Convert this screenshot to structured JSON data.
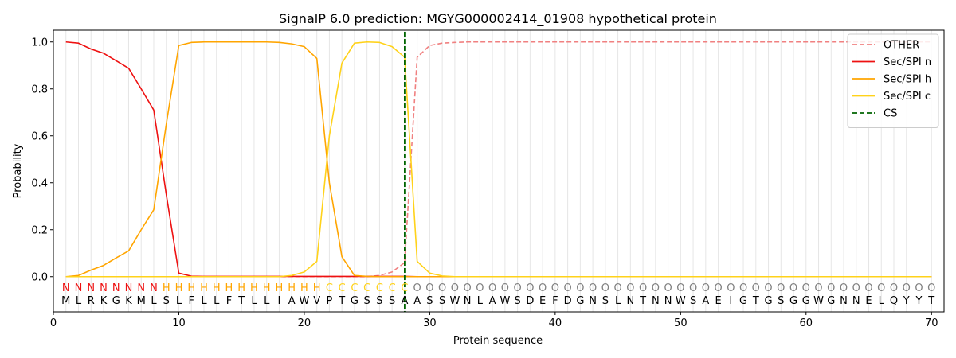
{
  "chart_data": {
    "type": "line",
    "title": "SignalP 6.0 prediction: MGYG000002414_01908 hypothetical protein",
    "xlabel": "Protein sequence",
    "ylabel": "Probability",
    "xlim": [
      0,
      71
    ],
    "ylim": [
      -0.15,
      1.05
    ],
    "xticks": [
      0,
      10,
      20,
      30,
      40,
      50,
      60,
      70
    ],
    "yticks": [
      0.0,
      0.2,
      0.4,
      0.6,
      0.8,
      1.0
    ],
    "x": [
      1,
      2,
      3,
      4,
      5,
      6,
      7,
      8,
      9,
      10,
      11,
      12,
      13,
      14,
      15,
      16,
      17,
      18,
      19,
      20,
      21,
      22,
      23,
      24,
      25,
      26,
      27,
      28,
      29,
      30,
      31,
      32,
      33,
      34,
      35,
      36,
      37,
      38,
      39,
      40,
      41,
      42,
      43,
      44,
      45,
      46,
      47,
      48,
      49,
      50,
      51,
      52,
      53,
      54,
      55,
      56,
      57,
      58,
      59,
      60,
      61,
      62,
      63,
      64,
      65,
      66,
      67,
      68,
      69,
      70
    ],
    "sequence": [
      "M",
      "L",
      "R",
      "K",
      "G",
      "K",
      "M",
      "L",
      "S",
      "L",
      "F",
      "L",
      "L",
      "F",
      "T",
      "L",
      "L",
      "I",
      "A",
      "W",
      "V",
      "P",
      "T",
      "G",
      "S",
      "S",
      "S",
      "A",
      "A",
      "S",
      "S",
      "W",
      "N",
      "L",
      "A",
      "W",
      "S",
      "D",
      "E",
      "F",
      "D",
      "G",
      "N",
      "S",
      "L",
      "N",
      "T",
      "N",
      "N",
      "W",
      "S",
      "A",
      "E",
      "I",
      "G",
      "T",
      "G",
      "S",
      "G",
      "G",
      "W",
      "G",
      "N",
      "N",
      "E",
      "L",
      "Q",
      "Y",
      "Y",
      "T"
    ],
    "region_labels": [
      "N",
      "N",
      "N",
      "N",
      "N",
      "N",
      "N",
      "N",
      "H",
      "H",
      "H",
      "H",
      "H",
      "H",
      "H",
      "H",
      "H",
      "H",
      "H",
      "H",
      "H",
      "C",
      "C",
      "C",
      "C",
      "C",
      "C",
      "C",
      "O",
      "O",
      "O",
      "O",
      "O",
      "O",
      "O",
      "O",
      "O",
      "O",
      "O",
      "O",
      "O",
      "O",
      "O",
      "O",
      "O",
      "O",
      "O",
      "O",
      "O",
      "O",
      "O",
      "O",
      "O",
      "O",
      "O",
      "O",
      "O",
      "O",
      "O",
      "O",
      "O",
      "O",
      "O",
      "O",
      "O",
      "O",
      "O",
      "O",
      "O",
      "O"
    ],
    "region_colors": {
      "N": "#ee1111",
      "H": "#ffa500",
      "C": "#ffd21a",
      "O": "#808080"
    },
    "series": [
      {
        "name": "OTHER",
        "color": "#f08080",
        "dashed": true,
        "values": [
          0,
          0,
          0,
          0,
          0,
          0,
          0,
          0,
          0,
          0,
          0,
          0,
          0,
          0,
          0,
          0,
          0,
          0,
          0,
          0,
          0,
          0,
          0,
          0,
          0,
          0.005,
          0.02,
          0.06,
          0.935,
          0.985,
          0.995,
          0.998,
          1,
          1,
          1,
          1,
          1,
          1,
          1,
          1,
          1,
          1,
          1,
          1,
          1,
          1,
          1,
          1,
          1,
          1,
          1,
          1,
          1,
          1,
          1,
          1,
          1,
          1,
          1,
          1,
          1,
          1,
          1,
          1,
          1,
          1,
          1,
          1,
          1,
          1
        ]
      },
      {
        "name": "Sec/SPI n",
        "color": "#ee1111",
        "dashed": false,
        "values": [
          1.0,
          0.995,
          0.97,
          0.952,
          0.92,
          0.888,
          0.8,
          0.71,
          0.35,
          0.015,
          0.002,
          0.001,
          0.001,
          0.001,
          0.001,
          0.001,
          0.001,
          0.001,
          0.001,
          0.001,
          0.001,
          0.001,
          0.001,
          0.001,
          0.001,
          0.001,
          0.001,
          0.001,
          0,
          0,
          0,
          0,
          0,
          0,
          0,
          0,
          0,
          0,
          0,
          0,
          0,
          0,
          0,
          0,
          0,
          0,
          0,
          0,
          0,
          0,
          0,
          0,
          0,
          0,
          0,
          0,
          0,
          0,
          0,
          0,
          0,
          0,
          0,
          0,
          0,
          0,
          0,
          0,
          0,
          0
        ]
      },
      {
        "name": "Sec/SPI h",
        "color": "#ffa500",
        "dashed": false,
        "values": [
          0,
          0.005,
          0.028,
          0.048,
          0.08,
          0.11,
          0.2,
          0.285,
          0.65,
          0.985,
          0.998,
          1,
          1,
          1,
          1,
          1,
          1,
          0.998,
          0.992,
          0.98,
          0.93,
          0.4,
          0.085,
          0.005,
          0.001,
          0,
          0,
          0,
          0,
          0,
          0,
          0,
          0,
          0,
          0,
          0,
          0,
          0,
          0,
          0,
          0,
          0,
          0,
          0,
          0,
          0,
          0,
          0,
          0,
          0,
          0,
          0,
          0,
          0,
          0,
          0,
          0,
          0,
          0,
          0,
          0,
          0,
          0,
          0,
          0,
          0,
          0,
          0,
          0,
          0
        ]
      },
      {
        "name": "Sec/SPI c",
        "color": "#ffd21a",
        "dashed": false,
        "values": [
          0,
          0,
          0,
          0,
          0,
          0,
          0,
          0,
          0,
          0,
          0,
          0,
          0,
          0,
          0,
          0,
          0,
          0,
          0.005,
          0.02,
          0.065,
          0.6,
          0.91,
          0.995,
          1,
          0.998,
          0.98,
          0.935,
          0.065,
          0.015,
          0.003,
          0,
          0,
          0,
          0,
          0,
          0,
          0,
          0,
          0,
          0,
          0,
          0,
          0,
          0,
          0,
          0,
          0,
          0,
          0,
          0,
          0,
          0,
          0,
          0,
          0,
          0,
          0,
          0,
          0,
          0,
          0,
          0,
          0,
          0,
          0,
          0,
          0,
          0,
          0
        ]
      }
    ],
    "cleavage_site": {
      "name": "CS",
      "x": 28,
      "color": "#006400",
      "dashed": true
    },
    "legend_position": "top-right",
    "grid": "vertical lines at every residue"
  }
}
